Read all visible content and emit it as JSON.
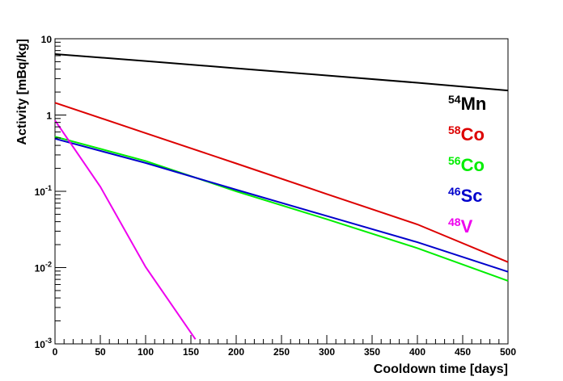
{
  "chart_data": {
    "type": "line",
    "xlabel": "Cooldown time [days]",
    "ylabel": "Activity [mBq/kg]",
    "xlim": [
      0,
      500
    ],
    "ylim": [
      0.001,
      10
    ],
    "y_scale": "log",
    "grid": false,
    "legend_placement": "right, inside plot",
    "x_ticks": [
      "0",
      "50",
      "100",
      "150",
      "200",
      "250",
      "300",
      "350",
      "400",
      "450",
      "500"
    ],
    "y_ticks": [
      {
        "base": "10",
        "exp": "-3"
      },
      {
        "base": "10",
        "exp": "-2"
      },
      {
        "base": "10",
        "exp": "-1"
      },
      {
        "base": "1",
        "exp": ""
      },
      {
        "base": "10",
        "exp": ""
      }
    ],
    "series": [
      {
        "name": "Mn",
        "mass": "54",
        "color": "#000000",
        "x": [
          0,
          100,
          200,
          300,
          400,
          500
        ],
        "y": [
          6.3,
          5.1,
          4.1,
          3.3,
          2.65,
          2.1
        ]
      },
      {
        "name": "Co",
        "mass": "58",
        "color": "#dd0000",
        "x": [
          0,
          100,
          200,
          300,
          400,
          500
        ],
        "y": [
          1.45,
          0.58,
          0.232,
          0.092,
          0.0368,
          0.0118
        ]
      },
      {
        "name": "Co",
        "mass": "56",
        "color": "#00ee00",
        "x": [
          0,
          100,
          200,
          300,
          400,
          500
        ],
        "y": [
          0.52,
          0.25,
          0.1,
          0.043,
          0.018,
          0.0067
        ]
      },
      {
        "name": "Sc",
        "mass": "46",
        "color": "#0000cc",
        "x": [
          0,
          100,
          200,
          300,
          400,
          500
        ],
        "y": [
          0.49,
          0.235,
          0.105,
          0.0475,
          0.0215,
          0.0088
        ]
      },
      {
        "name": "V",
        "mass": "48",
        "color": "#ee00ee",
        "x": [
          0,
          50,
          100,
          155
        ],
        "y": [
          0.85,
          0.115,
          0.0102,
          0.00115
        ]
      }
    ]
  }
}
